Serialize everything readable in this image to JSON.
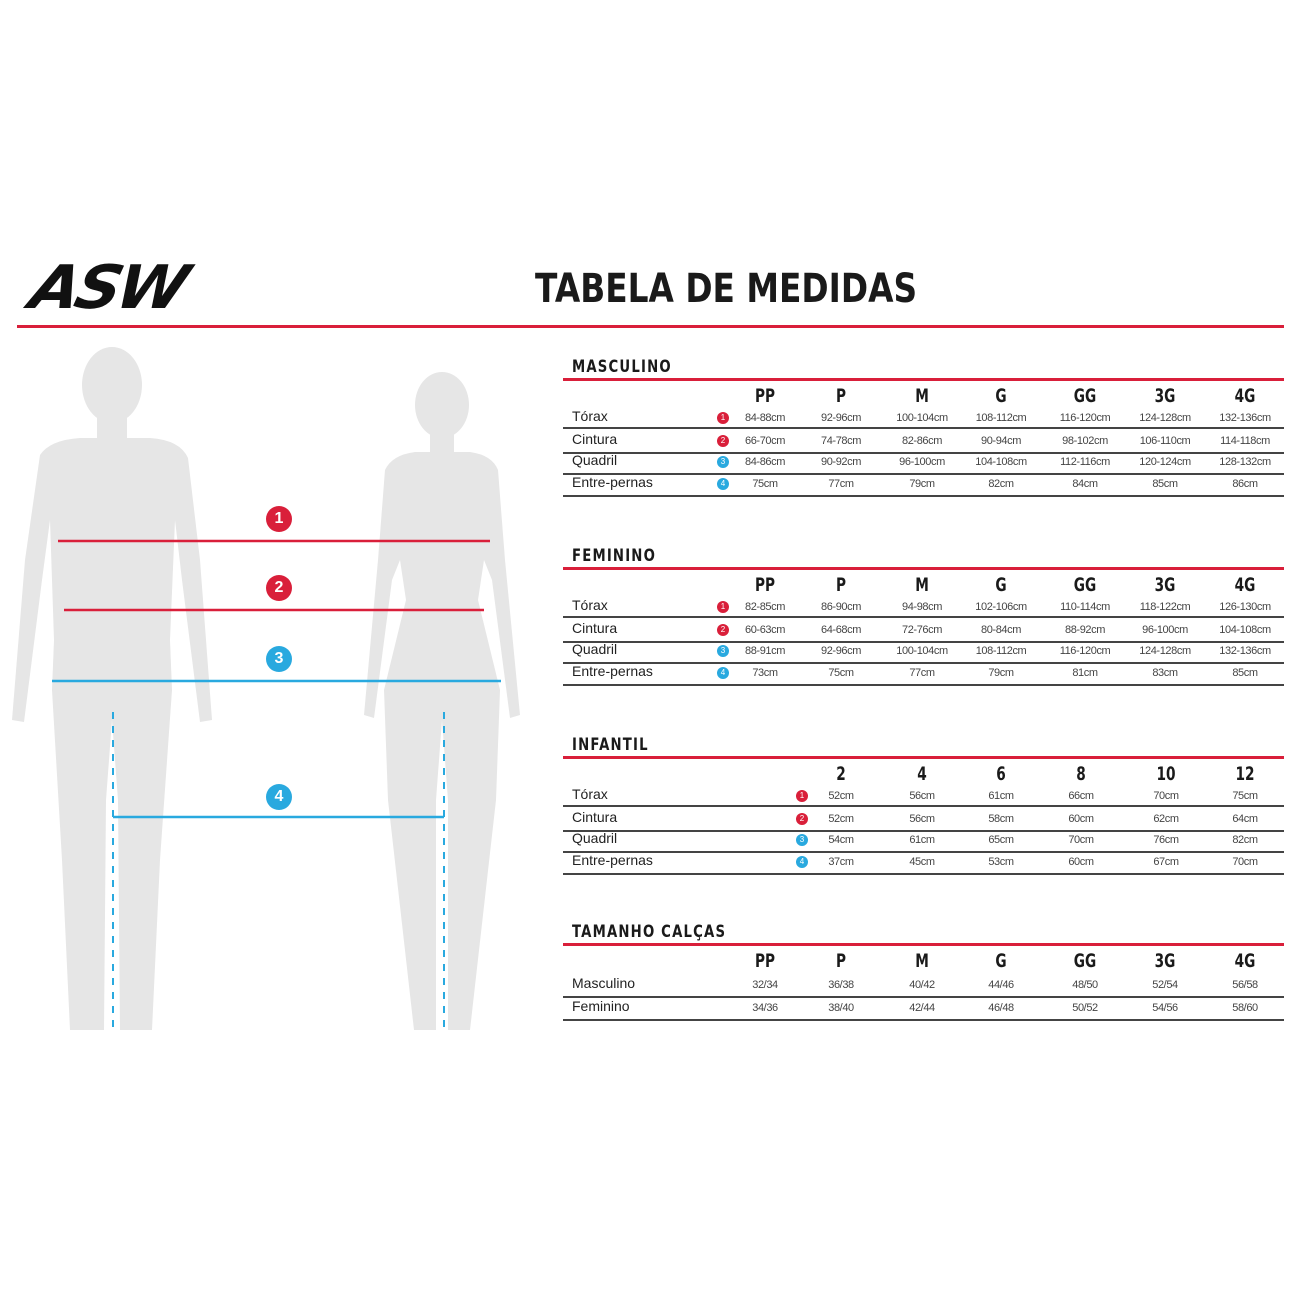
{
  "brand": "ASW",
  "title": "TABELA DE MEDIDAS",
  "colors": {
    "red": "#d91f3a",
    "blue": "#29a9df",
    "silhouette": "#e6e6e6"
  },
  "figure_markers": [
    "1",
    "2",
    "3",
    "4"
  ],
  "sections": [
    {
      "title": "MASCULINO",
      "columns": [
        "PP",
        "P",
        "M",
        "G",
        "GG",
        "3G",
        "4G"
      ],
      "rows": [
        {
          "label": "Tórax",
          "marker": "1",
          "values": [
            "84-88cm",
            "92-96cm",
            "100-104cm",
            "108-112cm",
            "116-120cm",
            "124-128cm",
            "132-136cm"
          ]
        },
        {
          "label": "Cintura",
          "marker": "2",
          "values": [
            "66-70cm",
            "74-78cm",
            "82-86cm",
            "90-94cm",
            "98-102cm",
            "106-110cm",
            "114-118cm"
          ]
        },
        {
          "label": "Quadril",
          "marker": "3",
          "values": [
            "84-86cm",
            "90-92cm",
            "96-100cm",
            "104-108cm",
            "112-116cm",
            "120-124cm",
            "128-132cm"
          ]
        },
        {
          "label": "Entre-pernas",
          "marker": "4",
          "values": [
            "75cm",
            "77cm",
            "79cm",
            "82cm",
            "84cm",
            "85cm",
            "86cm"
          ]
        }
      ]
    },
    {
      "title": "FEMININO",
      "columns": [
        "PP",
        "P",
        "M",
        "G",
        "GG",
        "3G",
        "4G"
      ],
      "rows": [
        {
          "label": "Tórax",
          "marker": "1",
          "values": [
            "82-85cm",
            "86-90cm",
            "94-98cm",
            "102-106cm",
            "110-114cm",
            "118-122cm",
            "126-130cm"
          ]
        },
        {
          "label": "Cintura",
          "marker": "2",
          "values": [
            "60-63cm",
            "64-68cm",
            "72-76cm",
            "80-84cm",
            "88-92cm",
            "96-100cm",
            "104-108cm"
          ]
        },
        {
          "label": "Quadril",
          "marker": "3",
          "values": [
            "88-91cm",
            "92-96cm",
            "100-104cm",
            "108-112cm",
            "116-120cm",
            "124-128cm",
            "132-136cm"
          ]
        },
        {
          "label": "Entre-pernas",
          "marker": "4",
          "values": [
            "73cm",
            "75cm",
            "77cm",
            "79cm",
            "81cm",
            "83cm",
            "85cm"
          ]
        }
      ]
    },
    {
      "title": "INFANTIL",
      "columns": [
        "2",
        "4",
        "6",
        "8",
        "10",
        "12"
      ],
      "rows": [
        {
          "label": "Tórax",
          "marker": "1",
          "values": [
            "52cm",
            "56cm",
            "61cm",
            "66cm",
            "70cm",
            "75cm"
          ]
        },
        {
          "label": "Cintura",
          "marker": "2",
          "values": [
            "52cm",
            "56cm",
            "58cm",
            "60cm",
            "62cm",
            "64cm"
          ]
        },
        {
          "label": "Quadril",
          "marker": "3",
          "values": [
            "54cm",
            "61cm",
            "65cm",
            "70cm",
            "76cm",
            "82cm"
          ]
        },
        {
          "label": "Entre-pernas",
          "marker": "4",
          "values": [
            "37cm",
            "45cm",
            "53cm",
            "60cm",
            "67cm",
            "70cm"
          ]
        }
      ]
    },
    {
      "title": "TAMANHO CALÇAS",
      "columns": [
        "PP",
        "P",
        "M",
        "G",
        "GG",
        "3G",
        "4G"
      ],
      "rows": [
        {
          "label": "Masculino",
          "values": [
            "32/34",
            "36/38",
            "40/42",
            "44/46",
            "48/50",
            "52/54",
            "56/58"
          ]
        },
        {
          "label": "Feminino",
          "values": [
            "34/36",
            "38/40",
            "42/44",
            "46/48",
            "50/52",
            "54/56",
            "58/60"
          ]
        }
      ]
    }
  ]
}
